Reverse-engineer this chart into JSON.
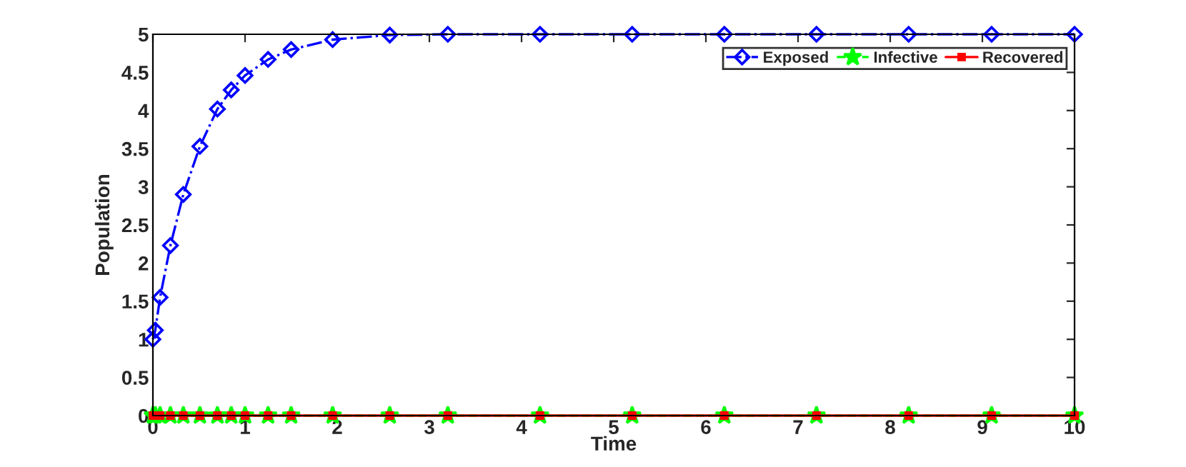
{
  "chart_data": {
    "type": "line",
    "xlabel": "Time",
    "ylabel": "Population",
    "x": [
      0,
      0.026,
      0.078,
      0.19,
      0.33,
      0.51,
      0.7,
      0.85,
      1.0,
      1.25,
      1.5,
      1.95,
      2.57,
      3.2,
      4.2,
      5.2,
      6.2,
      7.2,
      8.2,
      9.1,
      10
    ],
    "series": [
      {
        "name": "Exposed",
        "color": "#0000ff",
        "marker": "diamond",
        "line_style": "dashdot",
        "values": [
          1,
          1.12,
          1.55,
          2.23,
          2.9,
          3.53,
          4.02,
          4.27,
          4.46,
          4.67,
          4.8,
          4.93,
          4.99,
          5,
          5,
          5,
          5,
          5,
          5,
          5,
          5
        ]
      },
      {
        "name": "Infective",
        "color": "#00ff00",
        "marker": "star",
        "line_style": "dashed",
        "values": [
          0,
          0,
          0,
          0,
          0,
          0,
          0,
          0,
          0,
          0,
          0,
          0,
          0,
          0,
          0,
          0,
          0,
          0,
          0,
          0,
          0
        ]
      },
      {
        "name": "Recovered",
        "color": "#ff0000",
        "marker": "square",
        "line_style": "solid",
        "values": [
          0,
          0,
          0,
          0,
          0,
          0,
          0,
          0,
          0,
          0,
          0,
          0,
          0,
          0,
          0,
          0,
          0,
          0,
          0,
          0,
          0
        ]
      }
    ],
    "xlim": [
      0,
      10
    ],
    "xticks": [
      0,
      1,
      2,
      3,
      4,
      5,
      6,
      7,
      8,
      9,
      10
    ],
    "ylim": [
      0,
      5
    ],
    "yticks": [
      0,
      0.5,
      1,
      1.5,
      2,
      2.5,
      3,
      3.5,
      4,
      4.5,
      5
    ],
    "grid": false,
    "legend": "top right"
  }
}
